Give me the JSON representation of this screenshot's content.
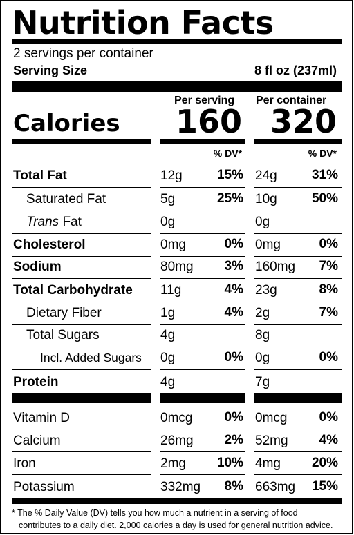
{
  "title": "Nutrition Facts",
  "servings_per_container": "2 servings per container",
  "serving_size": {
    "label": "Serving Size",
    "value": "8 fl oz (237ml)"
  },
  "columns": {
    "per_serving": "Per serving",
    "per_container": "Per container"
  },
  "calories": {
    "label": "Calories",
    "per_serving": "160",
    "per_container": "320"
  },
  "dv_header": "% DV*",
  "nutrients": [
    {
      "name": "Total Fat",
      "serving_amount": "12g",
      "serving_dv": "15%",
      "container_amount": "24g",
      "container_dv": "31%"
    },
    {
      "name": "Saturated Fat",
      "serving_amount": "5g",
      "serving_dv": "25%",
      "container_amount": "10g",
      "container_dv": "50%"
    },
    {
      "name_italic": "Trans",
      "name_rest": " Fat",
      "serving_amount": "0g",
      "serving_dv": "",
      "container_amount": "0g",
      "container_dv": ""
    },
    {
      "name": "Cholesterol",
      "serving_amount": "0mg",
      "serving_dv": "0%",
      "container_amount": "0mg",
      "container_dv": "0%"
    },
    {
      "name": "Sodium",
      "serving_amount": "80mg",
      "serving_dv": "3%",
      "container_amount": "160mg",
      "container_dv": "7%"
    },
    {
      "name": "Total Carbohydrate",
      "serving_amount": "11g",
      "serving_dv": "4%",
      "container_amount": "23g",
      "container_dv": "8%"
    },
    {
      "name": "Dietary Fiber",
      "serving_amount": "1g",
      "serving_dv": "4%",
      "container_amount": "2g",
      "container_dv": "7%"
    },
    {
      "name": "Total Sugars",
      "serving_amount": "4g",
      "serving_dv": "",
      "container_amount": "8g",
      "container_dv": ""
    },
    {
      "name": "Incl. Added Sugars",
      "serving_amount": "0g",
      "serving_dv": "0%",
      "container_amount": "0g",
      "container_dv": "0%"
    },
    {
      "name": "Protein",
      "serving_amount": "4g",
      "serving_dv": "",
      "container_amount": "7g",
      "container_dv": ""
    }
  ],
  "vitamins": [
    {
      "name": "Vitamin D",
      "serving_amount": "0mcg",
      "serving_dv": "0%",
      "container_amount": "0mcg",
      "container_dv": "0%"
    },
    {
      "name": "Calcium",
      "serving_amount": "26mg",
      "serving_dv": "2%",
      "container_amount": "52mg",
      "container_dv": "4%"
    },
    {
      "name": "Iron",
      "serving_amount": "2mg",
      "serving_dv": "10%",
      "container_amount": "4mg",
      "container_dv": "20%"
    },
    {
      "name": "Potassium",
      "serving_amount": "332mg",
      "serving_dv": "8%",
      "container_amount": "663mg",
      "container_dv": "15%"
    }
  ],
  "footnote": {
    "line1": "* The % Daily Value (DV) tells you how much a nutrient in a serving of food",
    "line2": "contributes to a daily diet. 2,000 calories a day is used for general nutrition advice."
  }
}
